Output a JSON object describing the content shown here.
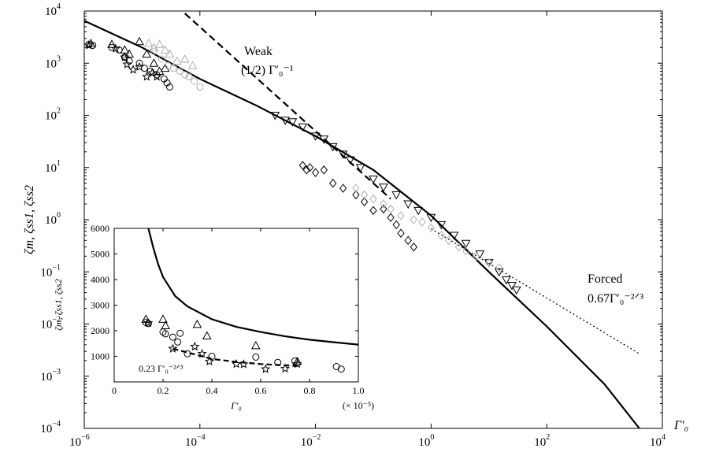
{
  "chart_data": [
    {
      "type": "scatter",
      "x_scale": "log",
      "y_scale": "log",
      "xlim": [
        1e-06,
        10000.0
      ],
      "ylim": [
        0.0001,
        10000.0
      ],
      "xlabel": "Γ′₀",
      "ylabel": "ζm, ζss1, ζss2",
      "x_ticks": [
        {
          "m": "10",
          "e": "−6"
        },
        {
          "m": "10",
          "e": "−4"
        },
        {
          "m": "10",
          "e": "−2"
        },
        {
          "m": "10",
          "e": "0"
        },
        {
          "m": "10",
          "e": "2"
        },
        {
          "m": "10",
          "e": "4"
        }
      ],
      "y_ticks": [
        {
          "m": "10",
          "e": "−4"
        },
        {
          "m": "10",
          "e": "−3"
        },
        {
          "m": "10",
          "e": "−2"
        },
        {
          "m": "10",
          "e": "−1"
        },
        {
          "m": "10",
          "e": "0"
        },
        {
          "m": "10",
          "e": "1"
        },
        {
          "m": "10",
          "e": "2"
        },
        {
          "m": "10",
          "e": "3"
        },
        {
          "m": "10",
          "e": "4"
        }
      ],
      "annotations": {
        "weak_title": "Weak",
        "weak_formula": "(1/2) Γ′₀⁻¹",
        "forced_title": "Forced",
        "forced_formula": "0.67Γ′₀⁻²ᐟ³"
      },
      "lines": [
        {
          "style": "solid",
          "x": [
            1e-06,
            1e-05,
            0.0001,
            0.001,
            0.01,
            0.1,
            1,
            10,
            100,
            1000,
            4000
          ],
          "y": [
            6500,
            2000,
            500,
            150,
            40,
            9,
            1.2,
            0.1,
            0.009,
            0.0007,
            0.0001
          ]
        },
        {
          "style": "dashed",
          "x": [
            5.5e-05,
            0.2
          ],
          "y": [
            9000,
            2.5
          ]
        },
        {
          "style": "dotted",
          "x": [
            1,
            40,
            4000
          ],
          "y": [
            0.67,
            0.058,
            0.0027
          ]
        }
      ],
      "series": [
        {
          "marker": "triangle-up",
          "color": "#000000",
          "points": [
            [
              1.3e-06,
              2400
            ],
            [
              3e-06,
              2300
            ],
            [
              5e-06,
              1800
            ],
            [
              6e-06,
              1500
            ],
            [
              9e-06,
              2600
            ],
            [
              1.2e-05,
              1500
            ],
            [
              1.6e-05,
              1000
            ],
            [
              2e-05,
              700
            ],
            [
              2.5e-05,
              800
            ]
          ]
        },
        {
          "marker": "circle",
          "color": "#000000",
          "points": [
            [
              1.2e-06,
              2300
            ],
            [
              1.4e-06,
              2200
            ],
            [
              3e-06,
              2000
            ],
            [
              4e-06,
              1800
            ],
            [
              5e-06,
              1300
            ],
            [
              6e-06,
              1100
            ],
            [
              9e-06,
              1000
            ],
            [
              1.1e-05,
              800
            ],
            [
              1.4e-05,
              700
            ],
            [
              1.8e-05,
              600
            ],
            [
              2.4e-05,
              500
            ],
            [
              2.7e-05,
              420
            ],
            [
              3e-05,
              350
            ]
          ]
        },
        {
          "marker": "star",
          "color": "#000000",
          "points": [
            [
              1.2e-06,
              2200
            ],
            [
              3.5e-06,
              1900
            ],
            [
              5e-06,
              1300
            ],
            [
              5.5e-06,
              950
            ],
            [
              7e-06,
              750
            ],
            [
              9e-06,
              850
            ],
            [
              1.2e-05,
              550
            ],
            [
              1.5e-05,
              650
            ],
            [
              1.8e-05,
              550
            ]
          ]
        },
        {
          "marker": "triangle-up",
          "color": "#b0b0b0",
          "points": [
            [
              1.3e-05,
              2400
            ],
            [
              1.6e-05,
              2000
            ],
            [
              2e-05,
              2300
            ],
            [
              2.5e-05,
              1800
            ],
            [
              3e-05,
              1500
            ],
            [
              4e-05,
              1100
            ],
            [
              5.5e-05,
              1200
            ],
            [
              7.5e-05,
              900
            ]
          ]
        },
        {
          "marker": "circle",
          "color": "#b0b0b0",
          "points": [
            [
              1.6e-05,
              1700
            ],
            [
              2.2e-05,
              1200
            ],
            [
              2.8e-05,
              900
            ],
            [
              3.5e-05,
              800
            ],
            [
              4.5e-05,
              700
            ],
            [
              5.5e-05,
              600
            ],
            [
              6.5e-05,
              550
            ],
            [
              8e-05,
              450
            ],
            [
              0.0001,
              350
            ]
          ]
        },
        {
          "marker": "triangle-down",
          "color": "#000000",
          "points": [
            [
              0.002,
              100
            ],
            [
              0.003,
              80
            ],
            [
              0.004,
              75
            ],
            [
              0.006,
              60
            ],
            [
              0.01,
              40
            ],
            [
              0.014,
              35
            ],
            [
              0.02,
              25
            ],
            [
              0.03,
              18
            ],
            [
              0.04,
              14
            ],
            [
              0.06,
              10
            ],
            [
              0.1,
              6
            ],
            [
              0.15,
              4.2
            ],
            [
              0.25,
              3
            ],
            [
              0.4,
              2
            ],
            [
              0.6,
              1.5
            ],
            [
              1,
              1.1
            ],
            [
              1.5,
              0.8
            ],
            [
              2.5,
              0.5
            ],
            [
              4,
              0.35
            ],
            [
              7,
              0.22
            ],
            [
              10,
              0.15
            ],
            [
              15,
              0.1
            ],
            [
              20,
              0.07
            ],
            [
              25,
              0.055
            ],
            [
              30,
              0.045
            ]
          ]
        },
        {
          "marker": "diamond",
          "color": "#000000",
          "points": [
            [
              0.006,
              11
            ],
            [
              0.007,
              9
            ],
            [
              0.008,
              10
            ],
            [
              0.01,
              8
            ],
            [
              0.014,
              9
            ],
            [
              0.02,
              5
            ],
            [
              0.03,
              4
            ],
            [
              0.05,
              3
            ],
            [
              0.07,
              2.2
            ],
            [
              0.1,
              1.5
            ],
            [
              0.15,
              1.6
            ],
            [
              0.2,
              1.1
            ],
            [
              0.25,
              0.8
            ],
            [
              0.3,
              0.55
            ],
            [
              0.4,
              0.4
            ],
            [
              0.5,
              0.3
            ]
          ]
        },
        {
          "marker": "diamond",
          "color": "#b0b0b0",
          "points": [
            [
              0.05,
              4
            ],
            [
              0.07,
              3
            ],
            [
              0.1,
              2.5
            ],
            [
              0.15,
              2
            ],
            [
              0.2,
              1.6
            ],
            [
              0.3,
              1.2
            ],
            [
              0.5,
              1
            ],
            [
              0.7,
              0.9
            ],
            [
              1,
              0.7
            ],
            [
              1.5,
              0.5
            ],
            [
              2,
              0.4
            ],
            [
              3,
              0.3
            ],
            [
              4,
              0.25
            ],
            [
              6,
              0.2
            ],
            [
              10,
              0.15
            ],
            [
              15,
              0.12
            ]
          ]
        }
      ]
    },
    {
      "type": "scatter",
      "role": "inset",
      "xlim": [
        0,
        1.0
      ],
      "ylim": [
        0,
        6000
      ],
      "xlabel": "Γ′₀",
      "x_multiplier": "(× 10⁻⁵)",
      "ylabel": "ζm, ζss1, ζss2",
      "x_ticks": [
        "0",
        "0.2",
        "0.4",
        "0.6",
        "0.8",
        "1.0"
      ],
      "y_ticks": [
        "1000",
        "2000",
        "3000",
        "4000",
        "5000",
        "6000"
      ],
      "annotations": {
        "formula": "0.23 Γ′₀⁻²ᐟ³"
      },
      "lines": [
        {
          "style": "solid",
          "x": [
            0.14,
            0.16,
            0.18,
            0.2,
            0.25,
            0.3,
            0.4,
            0.5,
            0.6,
            0.7,
            0.8,
            0.9,
            1.0
          ],
          "y": [
            6000,
            5250,
            4600,
            4100,
            3350,
            2950,
            2450,
            2150,
            1950,
            1780,
            1650,
            1550,
            1460
          ]
        },
        {
          "style": "dashed",
          "x": [
            0.24,
            0.3,
            0.4,
            0.5,
            0.6,
            0.7,
            0.75
          ],
          "y": [
            1300,
            1150,
            900,
            780,
            700,
            650,
            620
          ]
        }
      ],
      "series": [
        {
          "marker": "triangle-up",
          "points": [
            [
              0.13,
              2450
            ],
            [
              0.2,
              2450
            ],
            [
              0.21,
              2200
            ],
            [
              0.34,
              2250
            ],
            [
              0.38,
              1800
            ],
            [
              0.58,
              1420
            ],
            [
              0.75,
              800
            ]
          ]
        },
        {
          "marker": "circle",
          "points": [
            [
              0.13,
              2320
            ],
            [
              0.14,
              2280
            ],
            [
              0.2,
              1950
            ],
            [
              0.21,
              1880
            ],
            [
              0.24,
              1750
            ],
            [
              0.26,
              1560
            ],
            [
              0.27,
              1900
            ],
            [
              0.3,
              1100
            ],
            [
              0.4,
              1000
            ],
            [
              0.58,
              970
            ],
            [
              0.67,
              760
            ],
            [
              0.74,
              820
            ],
            [
              0.91,
              600
            ],
            [
              0.93,
              500
            ]
          ]
        },
        {
          "marker": "star",
          "points": [
            [
              0.14,
              2300
            ],
            [
              0.24,
              1300
            ],
            [
              0.33,
              1380
            ],
            [
              0.36,
              1100
            ],
            [
              0.39,
              800
            ],
            [
              0.5,
              700
            ],
            [
              0.53,
              690
            ],
            [
              0.62,
              500
            ],
            [
              0.7,
              520
            ],
            [
              0.75,
              700
            ]
          ]
        }
      ]
    }
  ]
}
